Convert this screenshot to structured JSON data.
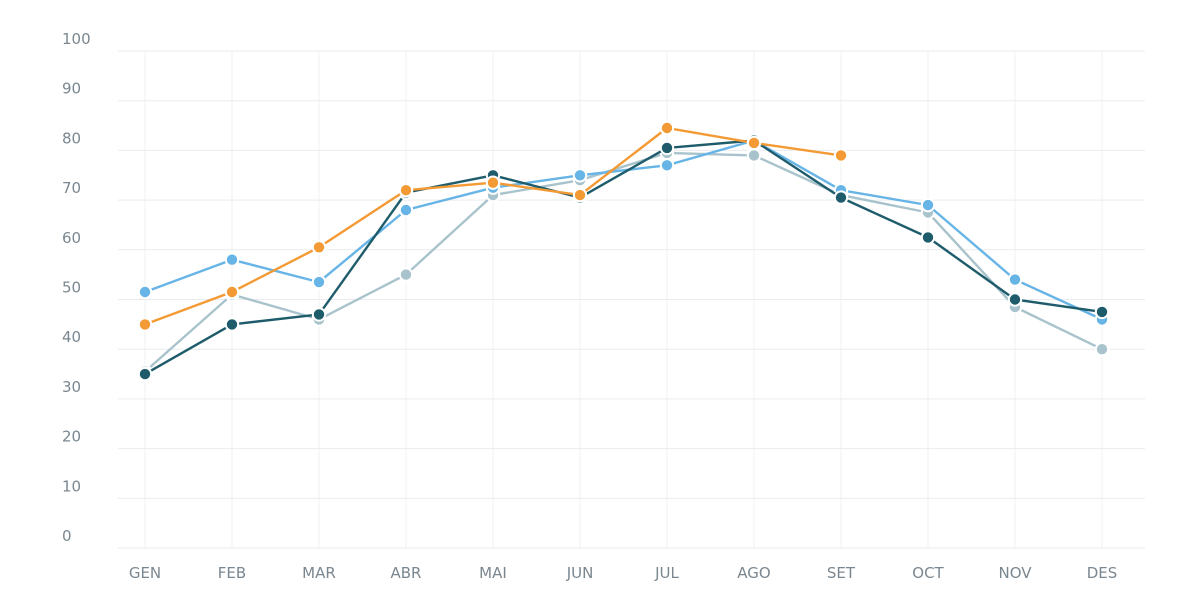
{
  "chart_data": {
    "type": "line",
    "title": "",
    "xlabel": "",
    "ylabel": "",
    "categories": [
      "GEN",
      "FEB",
      "MAR",
      "ABR",
      "MAI",
      "JUN",
      "JUL",
      "AGO",
      "SET",
      "OCT",
      "NOV",
      "DES"
    ],
    "ylim": [
      0,
      100
    ],
    "yticks": [
      0,
      10,
      20,
      30,
      40,
      50,
      60,
      70,
      80,
      90,
      100
    ],
    "grid": true,
    "legend": "none",
    "series": [
      {
        "color": "#a9c3cc",
        "values": [
          35.5,
          51,
          46,
          55,
          71,
          74,
          79.5,
          79,
          71,
          67.5,
          48.5,
          40
        ]
      },
      {
        "color": "#67b4e6",
        "values": [
          51.5,
          58,
          53.5,
          68,
          72.5,
          75,
          77,
          82,
          72,
          69,
          54,
          46
        ]
      },
      {
        "color": "#1f5c6b",
        "values": [
          35,
          45,
          47,
          71.5,
          75,
          70.5,
          80.5,
          82,
          70.5,
          62.5,
          50,
          47.5
        ]
      },
      {
        "color": "#f39a34",
        "values": [
          45,
          51.5,
          60.5,
          72,
          73.5,
          71,
          84.5,
          81.5,
          79,
          null,
          null,
          null
        ]
      }
    ]
  }
}
